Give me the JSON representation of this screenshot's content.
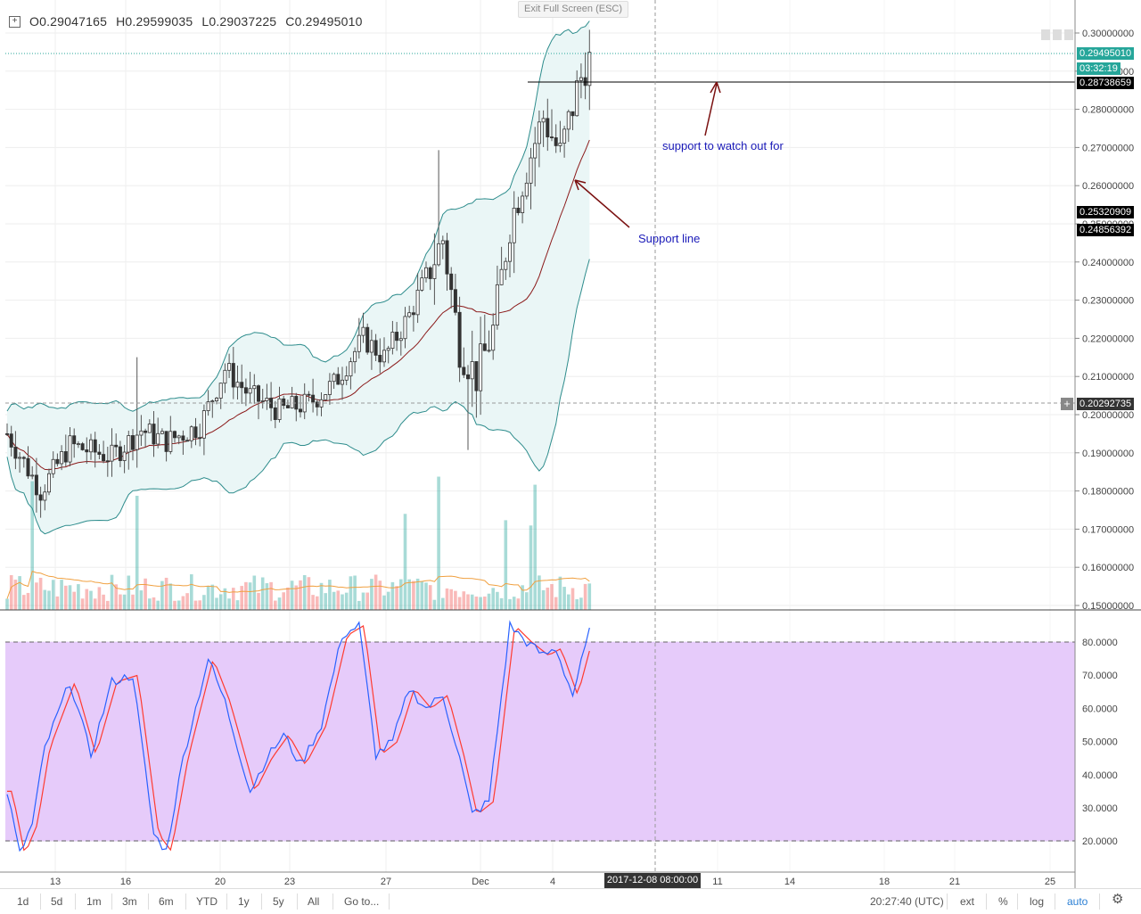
{
  "ohlc": {
    "open": "O0.29047165",
    "high": "H0.29599035",
    "low": "L0.29037225",
    "close": "C0.29495010",
    "toggle_icon": "plus-square-icon"
  },
  "exit_fullscreen_label": "Exit Full Screen (ESC)",
  "annotations": {
    "support_watch": "support to watch out for",
    "support_line": "Support line"
  },
  "price_axis_labels": [
    "0.30000000",
    "0.29000000",
    "0.28000000",
    "0.27000000",
    "0.26000000",
    "0.25000000",
    "0.24000000",
    "0.23000000",
    "0.22000000",
    "0.21000000",
    "0.20000000",
    "0.19000000",
    "0.18000000",
    "0.17000000",
    "0.16000000",
    "0.15000000"
  ],
  "price_tags": {
    "last_price": "0.29495010",
    "countdown": "03:32:19",
    "support_level": "0.28738659",
    "upper_band": "0.25320909",
    "ma_value": "0.24856392",
    "crosshair_price": "0.20292735"
  },
  "stoch_axis_labels": [
    "80.0000",
    "70.0000",
    "60.0000",
    "50.0000",
    "40.0000",
    "30.0000",
    "20.0000"
  ],
  "time_axis_labels": [
    "13",
    "16",
    "20",
    "23",
    "27",
    "Dec",
    "4",
    "11",
    "14",
    "18",
    "21",
    "25"
  ],
  "crosshair_time": "2017-12-08 08:00:00",
  "toolbar": {
    "ranges": [
      "1d",
      "5d",
      "1m",
      "3m",
      "6m",
      "YTD",
      "1y",
      "5y",
      "All"
    ],
    "goto": "Go to...",
    "clock": "20:27:40 (UTC)",
    "ext": "ext",
    "percent": "%",
    "log": "log",
    "auto": "auto",
    "settings_icon": "gear-icon"
  },
  "colors": {
    "bull": "#26a69a",
    "bear": "#ef5350",
    "band": "#2d8c8c",
    "ma": "#8b1a1a",
    "stoch_k": "#2962ff",
    "stoch_d": "#ff3b30",
    "stoch_fill": "#e6cbfa",
    "annotation": "#1a1ab8",
    "arrow": "#7a1010"
  },
  "chart_data": {
    "type": "candlestick",
    "price_range": [
      0.15,
      0.3
    ],
    "support_level": 0.28738659,
    "last_price": 0.2949501,
    "stoch_levels": [
      20,
      80
    ],
    "stoch_range": [
      13,
      87
    ]
  }
}
